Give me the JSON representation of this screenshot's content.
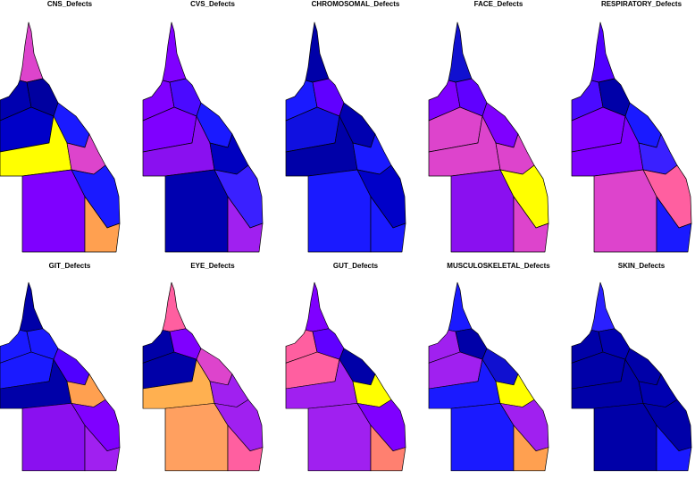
{
  "panels": [
    {
      "title": "CNS_Defects",
      "region_colors": [
        "#dd44cc",
        "#0000b0",
        "#0000a0",
        "#0000c8",
        "#1a1aff",
        "#ffff00",
        "#dd44cc",
        "#7f00ff",
        "#1a1aff",
        "#ffa050"
      ]
    },
    {
      "title": "CVS_Defects",
      "region_colors": [
        "#7f00ff",
        "#7f00ff",
        "#4b0aff",
        "#7f00ff",
        "#1a1aff",
        "#8a10f0",
        "#0000c0",
        "#0000b0",
        "#3a20ff",
        "#a020f0"
      ]
    },
    {
      "title": "CHROMOSOMAL_Defects",
      "region_colors": [
        "#0000a8",
        "#1a1aff",
        "#6000ff",
        "#1010e0",
        "#0000b0",
        "#0000a8",
        "#1a1aff",
        "#1a1aff",
        "#0000c8",
        "#1a1aff"
      ]
    },
    {
      "title": "FACE_Defects",
      "region_colors": [
        "#1010d0",
        "#7f00ff",
        "#6000ff",
        "#dd44cc",
        "#7f00ff",
        "#dd44cc",
        "#dd44cc",
        "#8a10f0",
        "#ffff00",
        "#dd44cc"
      ]
    },
    {
      "title": "RESPIRATORY_Defects",
      "region_colors": [
        "#5000ff",
        "#4b0aff",
        "#0000a8",
        "#7f00ff",
        "#1a1aff",
        "#7f00ff",
        "#3a20ff",
        "#dd44cc",
        "#ff5fa0",
        "#1a1aff"
      ]
    },
    {
      "title": "GIT_Defects",
      "region_colors": [
        "#0000a8",
        "#1a1aff",
        "#1a1aff",
        "#1a1aff",
        "#5000ff",
        "#0000a8",
        "#ffa050",
        "#8a10f0",
        "#7f00ff",
        "#a020f0"
      ]
    },
    {
      "title": "EYE_Defects",
      "region_colors": [
        "#ff5fa0",
        "#0000a8",
        "#7f00ff",
        "#0000a8",
        "#dd44cc",
        "#ffb050",
        "#a020f0",
        "#ffa060",
        "#a020f0",
        "#ff5fa0"
      ]
    },
    {
      "title": "GUT_Defects",
      "region_colors": [
        "#7f00ff",
        "#ff5fa0",
        "#6000ff",
        "#ff5fa0",
        "#0000a8",
        "#a020f0",
        "#ffff00",
        "#a020f0",
        "#7f00ff",
        "#ff8070"
      ]
    },
    {
      "title": "MUSCULOSKELETAL_Defects",
      "region_colors": [
        "#1a1aff",
        "#a020f0",
        "#0000a8",
        "#a020f0",
        "#1010d0",
        "#1a1aff",
        "#ffff00",
        "#1a1aff",
        "#a020f0",
        "#ffa050"
      ]
    },
    {
      "title": "SKIN_Defects",
      "region_colors": [
        "#2a20ff",
        "#0000a8",
        "#0000b0",
        "#0000a8",
        "#0000a8",
        "#0000a8",
        "#0000b0",
        "#0000a8",
        "#0000a8",
        "#1a1aff"
      ]
    }
  ]
}
